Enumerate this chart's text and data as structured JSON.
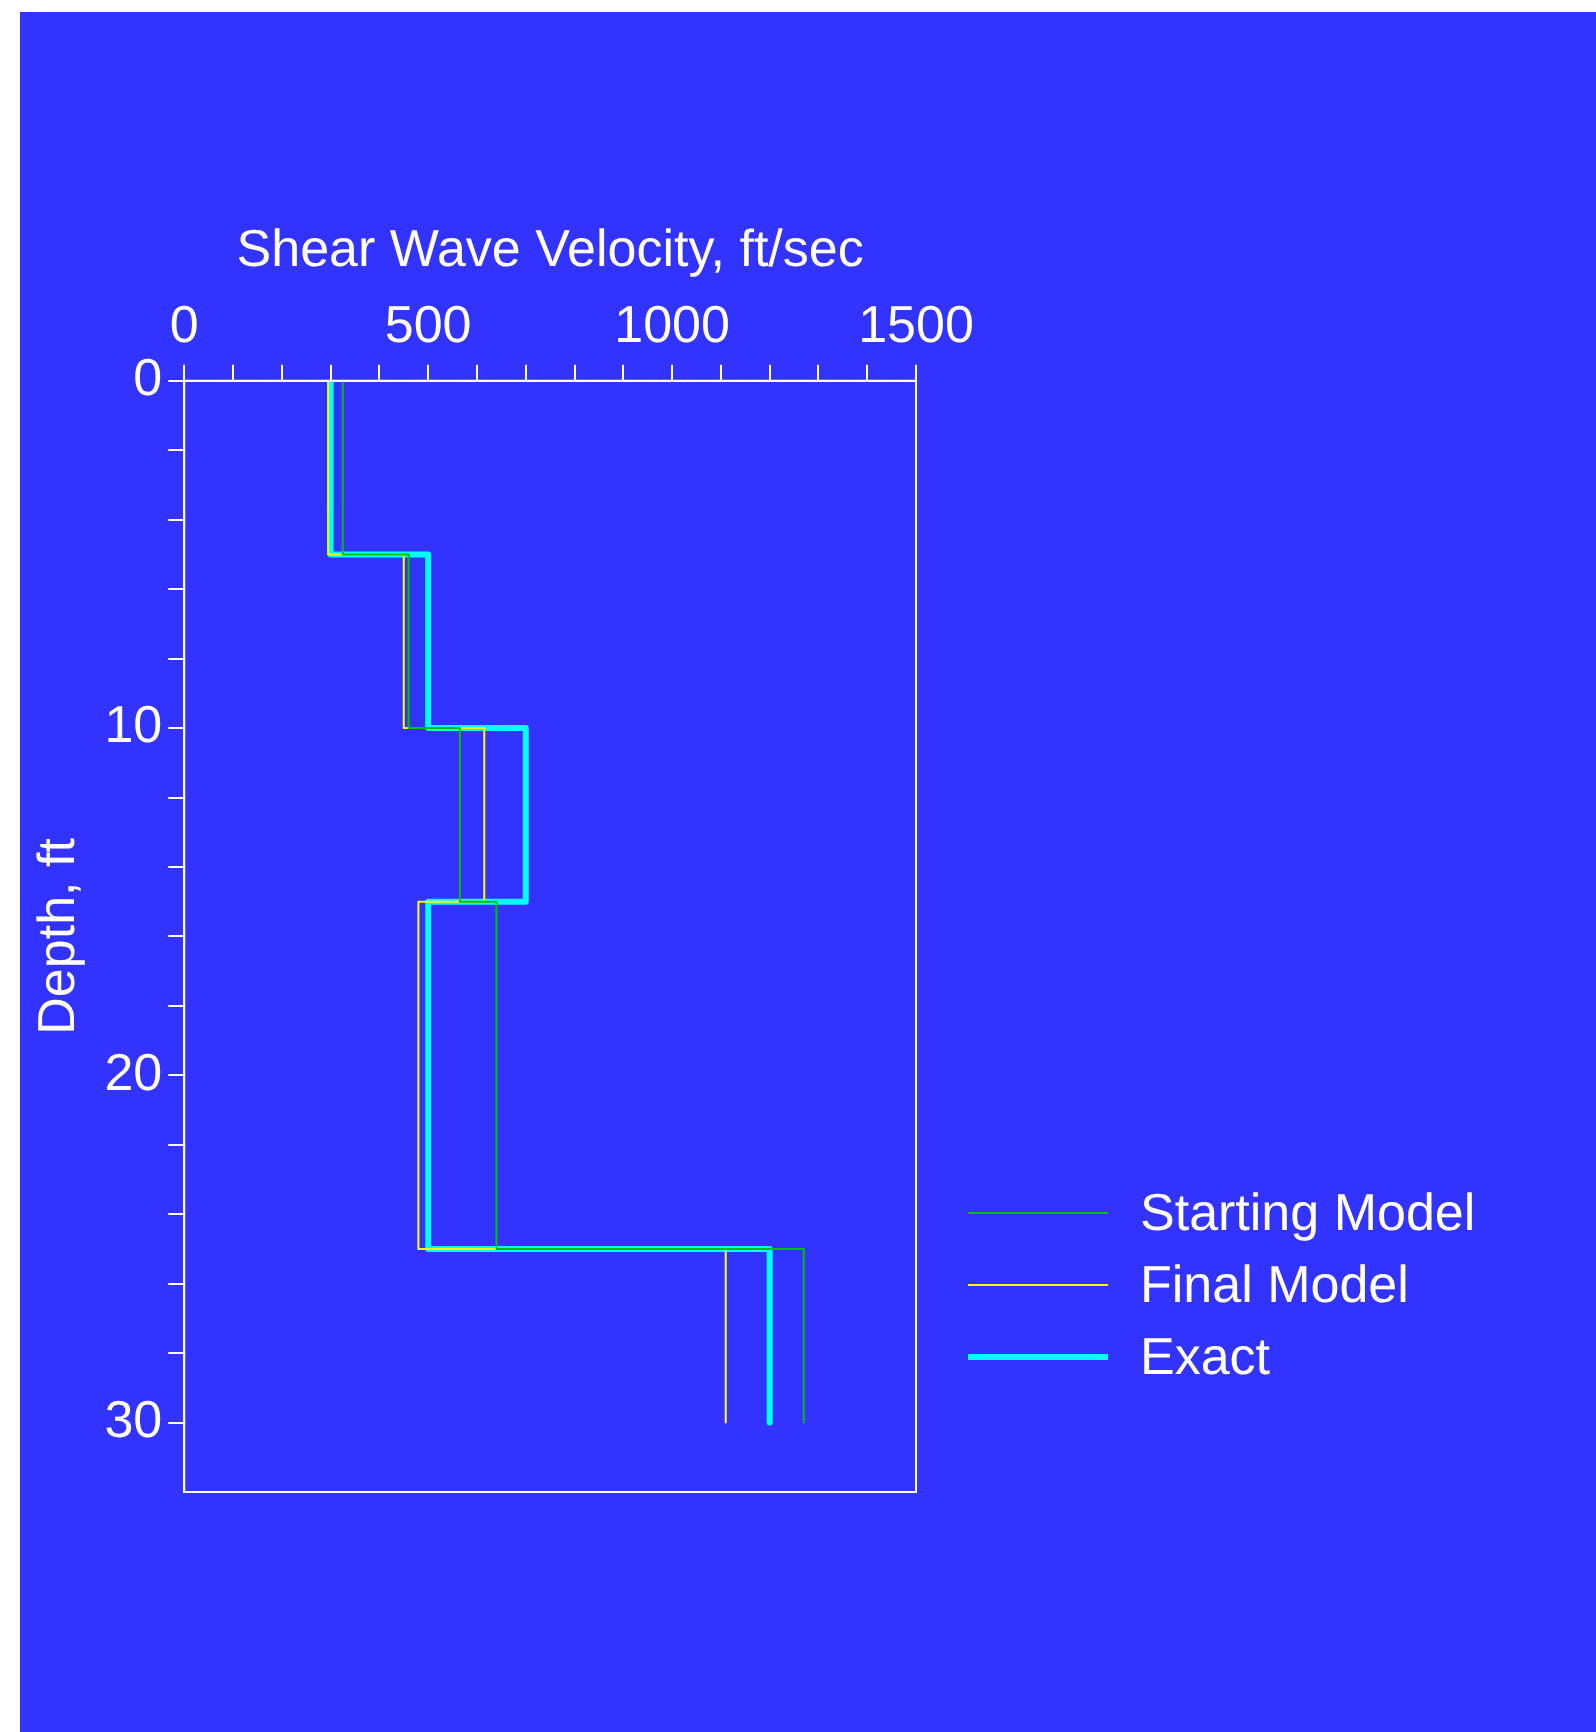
{
  "chart_data": {
    "type": "line",
    "xlabel": "Shear Wave Velocity, ft/sec",
    "ylabel": "Depth, ft",
    "xlim": [
      0,
      1500
    ],
    "ylim": [
      32,
      0
    ],
    "xticks": [
      0,
      {
        "value": 100,
        "label": null
      },
      {
        "value": 200,
        "label": null
      },
      {
        "value": 300,
        "label": null
      },
      {
        "value": 400,
        "label": null
      },
      500,
      {
        "value": 600,
        "label": null
      },
      {
        "value": 700,
        "label": null
      },
      {
        "value": 800,
        "label": null
      },
      {
        "value": 900,
        "label": null
      },
      1000,
      {
        "value": 1100,
        "label": null
      },
      {
        "value": 1200,
        "label": null
      },
      {
        "value": 1300,
        "label": null
      },
      {
        "value": 1400,
        "label": null
      },
      1500
    ],
    "yticks": [
      0,
      {
        "value": 2,
        "label": null
      },
      {
        "value": 4,
        "label": null
      },
      {
        "value": 6,
        "label": null
      },
      {
        "value": 8,
        "label": null
      },
      10,
      {
        "value": 12,
        "label": null
      },
      {
        "value": 14,
        "label": null
      },
      {
        "value": 16,
        "label": null
      },
      {
        "value": 18,
        "label": null
      },
      20,
      {
        "value": 22,
        "label": null
      },
      {
        "value": 24,
        "label": null
      },
      {
        "value": 26,
        "label": null
      },
      {
        "value": 28,
        "label": null
      },
      30
    ],
    "grid": false,
    "legend": "right",
    "series": [
      {
        "name": "Starting Model",
        "color": "#00c000",
        "x": [
          325,
          325,
          460,
          460,
          565,
          565,
          640,
          640,
          1270,
          1270
        ],
        "values": [
          0,
          5,
          5,
          10,
          10,
          15,
          15,
          25,
          25,
          30
        ]
      },
      {
        "name": "Final Model",
        "color": "#ffff00",
        "x": [
          295,
          295,
          450,
          450,
          615,
          615,
          480,
          480,
          1110,
          1110
        ],
        "values": [
          0,
          5,
          5,
          10,
          10,
          15,
          15,
          25,
          25,
          30
        ]
      },
      {
        "name": "Exact",
        "color": "#00ffff",
        "x": [
          300,
          300,
          500,
          500,
          700,
          700,
          500,
          500,
          1200,
          1200
        ],
        "values": [
          0,
          5,
          5,
          10,
          10,
          15,
          15,
          25,
          25,
          30
        ]
      }
    ]
  }
}
